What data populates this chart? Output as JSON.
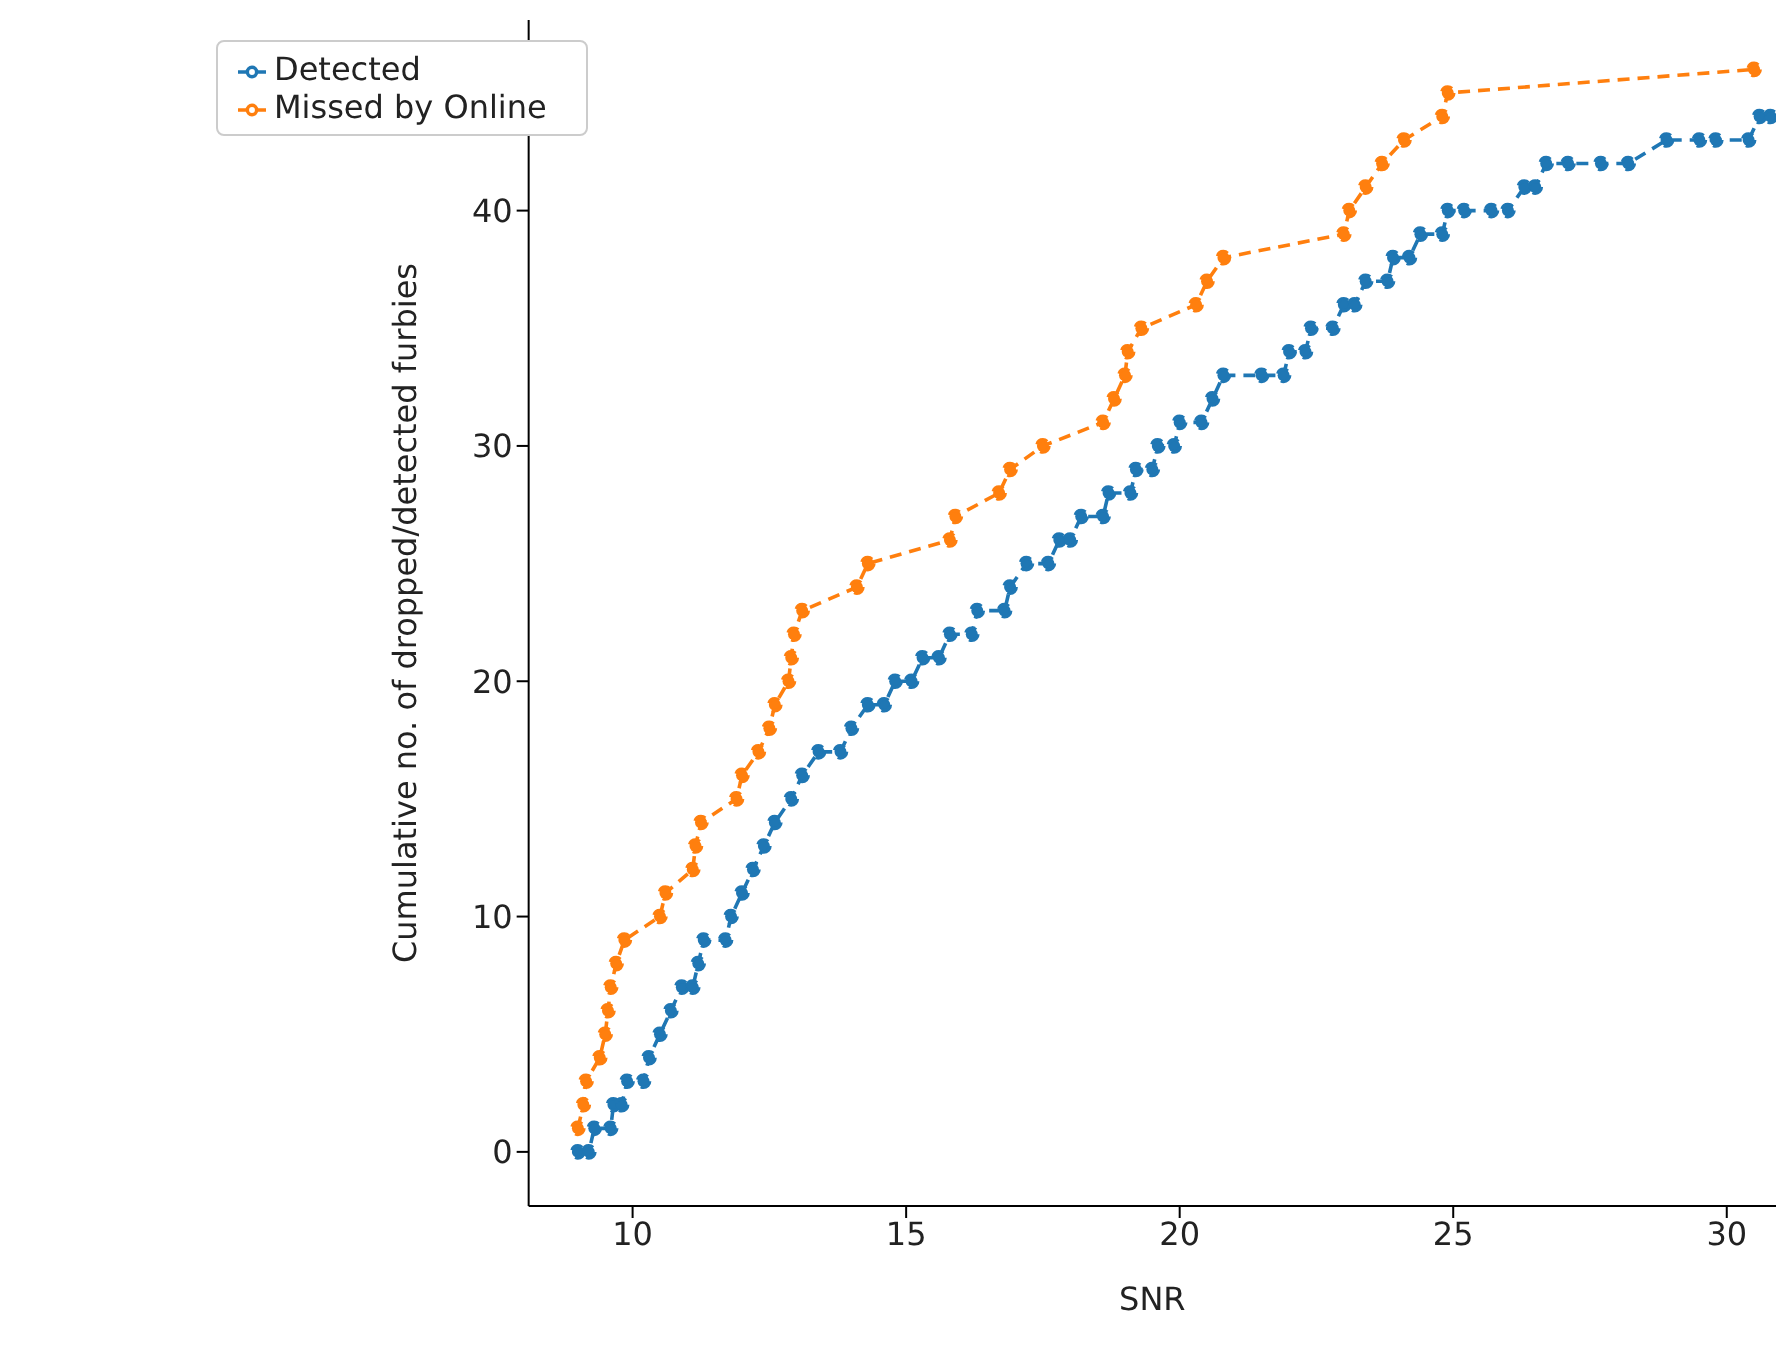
{
  "chart_data": {
    "type": "line",
    "xlabel": "SNR",
    "ylabel": "Cumulative no. of dropped/detected furbies",
    "xlim": [
      8.1,
      30.9
    ],
    "xticks": [
      10,
      15,
      20,
      25,
      30
    ],
    "ylim": [
      -2.3,
      48.1
    ],
    "yticks": [
      0,
      10,
      20,
      30,
      40
    ],
    "grid": false,
    "legend": "top left",
    "marker": "circle",
    "line_style": "dashed",
    "series": [
      {
        "name": "Detected",
        "color": "#1f77b4",
        "x": [
          9.0,
          9.2,
          9.3,
          9.6,
          9.65,
          9.8,
          9.9,
          10.2,
          10.3,
          10.5,
          10.7,
          10.9,
          11.1,
          11.2,
          11.3,
          11.7,
          11.8,
          12.0,
          12.2,
          12.4,
          12.6,
          12.9,
          13.1,
          13.4,
          13.8,
          14.0,
          14.3,
          14.6,
          14.8,
          15.1,
          15.3,
          15.6,
          15.8,
          16.2,
          16.3,
          16.8,
          16.9,
          17.2,
          17.6,
          17.8,
          18.0,
          18.2,
          18.6,
          18.7,
          19.1,
          19.2,
          19.5,
          19.6,
          19.9,
          20.0,
          20.4,
          20.6,
          20.8,
          21.5,
          21.9,
          22.0,
          22.3,
          22.4,
          22.8,
          23.0,
          23.2,
          23.4,
          23.8,
          23.9,
          24.2,
          24.4,
          24.8,
          24.9,
          25.2,
          25.7,
          26.0,
          26.3,
          26.5,
          26.7,
          27.1,
          27.7,
          28.2,
          28.9,
          29.5,
          29.8,
          30.4,
          30.6,
          30.8
        ],
        "values": [
          0,
          0,
          1,
          1,
          2,
          2,
          3,
          3,
          4,
          5,
          6,
          7,
          7,
          8,
          9,
          9,
          10,
          11,
          12,
          13,
          14,
          15,
          16,
          17,
          17,
          18,
          19,
          19,
          20,
          20,
          21,
          21,
          22,
          22,
          23,
          23,
          24,
          25,
          25,
          26,
          26,
          27,
          27,
          28,
          28,
          29,
          29,
          30,
          30,
          31,
          31,
          32,
          33,
          33,
          33,
          34,
          34,
          35,
          35,
          36,
          36,
          37,
          37,
          38,
          38,
          39,
          39,
          40,
          40,
          40,
          40,
          41,
          41,
          42,
          42,
          42,
          42,
          43,
          43,
          43,
          43,
          44,
          44
        ]
      },
      {
        "name": "Missed by Online",
        "color": "#ff7f0e",
        "x": [
          9.0,
          9.1,
          9.15,
          9.4,
          9.5,
          9.55,
          9.6,
          9.7,
          9.85,
          10.5,
          10.6,
          11.1,
          11.15,
          11.25,
          11.9,
          12.0,
          12.3,
          12.5,
          12.6,
          12.85,
          12.9,
          12.95,
          13.1,
          14.1,
          14.3,
          15.8,
          15.9,
          16.7,
          16.9,
          17.5,
          18.6,
          18.8,
          19.0,
          19.05,
          19.3,
          20.3,
          20.5,
          20.8,
          23.0,
          23.1,
          23.4,
          23.7,
          24.1,
          24.8,
          24.9,
          30.5
        ],
        "values": [
          1,
          2,
          3,
          4,
          5,
          6,
          7,
          8,
          9,
          10,
          11,
          12,
          13,
          14,
          15,
          16,
          17,
          18,
          19,
          20,
          21,
          22,
          23,
          24,
          25,
          26,
          27,
          28,
          29,
          30,
          31,
          32,
          33,
          34,
          35,
          36,
          37,
          38,
          39,
          40,
          41,
          42,
          43,
          44,
          45,
          46
        ]
      }
    ]
  }
}
